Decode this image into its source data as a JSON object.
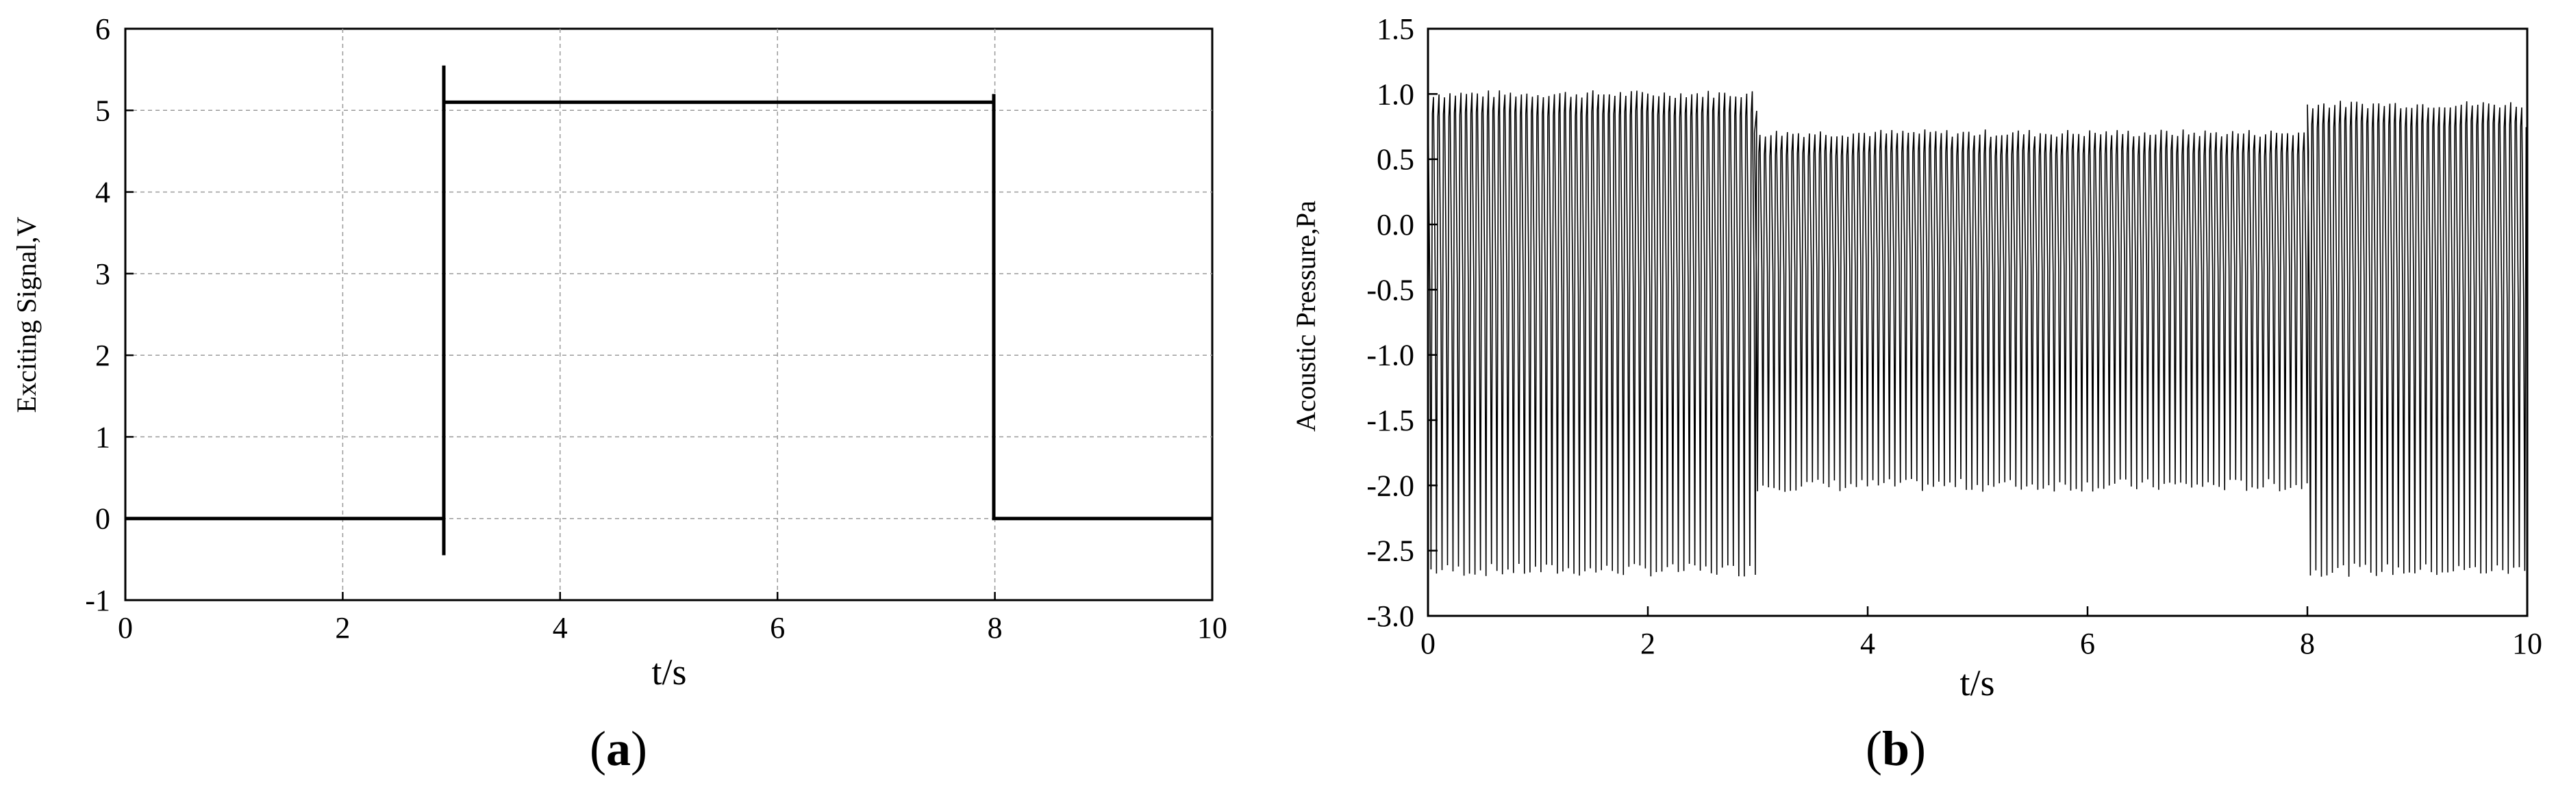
{
  "chart_data": [
    {
      "type": "line",
      "panel_label": "a",
      "xlabel": "t/s",
      "ylabel": "Exciting Signal,V",
      "xlim": [
        0,
        10
      ],
      "ylim": [
        -1,
        6
      ],
      "xticks": [
        "0",
        "2",
        "4",
        "6",
        "8",
        "10"
      ],
      "yticks": [
        "-1",
        "0",
        "1",
        "2",
        "3",
        "4",
        "5",
        "6"
      ],
      "grid": true,
      "series": [
        {
          "x": [
            0,
            2.93,
            2.93,
            2.93,
            2.93,
            7.99,
            7.99,
            7.99,
            10
          ],
          "y": [
            0,
            0,
            -0.45,
            5.55,
            5.1,
            5.1,
            5.2,
            0,
            0
          ]
        }
      ]
    },
    {
      "type": "line",
      "panel_label": "b",
      "xlabel": "t/s",
      "ylabel": "Acoustic Pressure,Pa",
      "xlim": [
        0,
        10
      ],
      "ylim": [
        -3.0,
        1.5
      ],
      "xticks": [
        "0",
        "2",
        "4",
        "6",
        "8",
        "10"
      ],
      "yticks": [
        "-3.0",
        "-2.5",
        "-2.0",
        "-1.5",
        "-1.0",
        "-0.5",
        "0.0",
        "0.5",
        "1.0",
        "1.5"
      ],
      "grid": false,
      "series": [
        {
          "segments": [
            {
              "t_start": 0,
              "t_end": 2.97,
              "max": 1.0,
              "min": -2.65
            },
            {
              "t_start": 2.97,
              "t_end": 8.0,
              "max": 0.7,
              "min": -2.0
            },
            {
              "t_start": 8.0,
              "t_end": 10,
              "max": 0.92,
              "min": -2.65
            }
          ],
          "period_s": 0.05
        }
      ]
    }
  ]
}
